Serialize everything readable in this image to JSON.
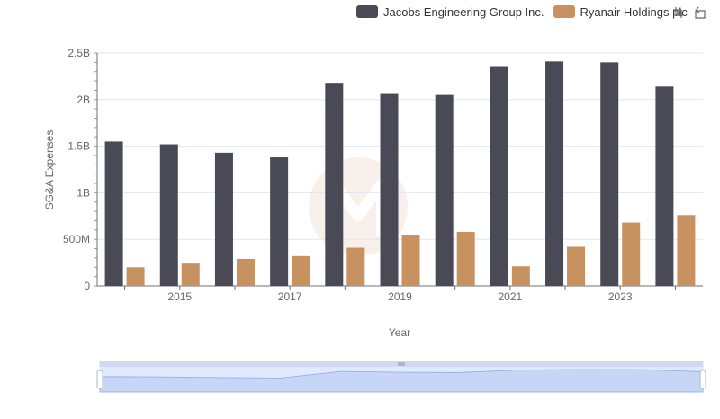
{
  "legend": {
    "items": [
      {
        "label": "Jacobs Engineering Group Inc.",
        "color": "#4a4a57"
      },
      {
        "label": "Ryanair Holdings plc",
        "color": "#c89260"
      }
    ]
  },
  "toolbox": {
    "icons": [
      "zoom-icon",
      "restore-icon"
    ]
  },
  "chart_data": {
    "type": "bar",
    "title": "",
    "xlabel": "Year",
    "ylabel": "SG&A Expenses",
    "categories": [
      "2014",
      "2015",
      "2016",
      "2017",
      "2018",
      "2019",
      "2020",
      "2021",
      "2022",
      "2023",
      "2024"
    ],
    "x_tick_labels": [
      "2015",
      "2017",
      "2019",
      "2021",
      "2023"
    ],
    "y_tick_labels": [
      "0",
      "500M",
      "1B",
      "1.5B",
      "2B",
      "2.5B"
    ],
    "ylim": [
      0,
      2500000000
    ],
    "grid": true,
    "legend_position": "top-right",
    "series": [
      {
        "name": "Jacobs Engineering Group Inc.",
        "color": "#4a4a57",
        "values": [
          1550000000,
          1520000000,
          1430000000,
          1380000000,
          2180000000,
          2070000000,
          2050000000,
          2360000000,
          2410000000,
          2400000000,
          2140000000
        ]
      },
      {
        "name": "Ryanair Holdings plc",
        "color": "#c89260",
        "values": [
          200000000,
          240000000,
          290000000,
          320000000,
          410000000,
          550000000,
          580000000,
          210000000,
          420000000,
          680000000,
          760000000
        ]
      }
    ]
  },
  "data_zoom": {
    "range_percent": [
      0,
      100
    ]
  }
}
